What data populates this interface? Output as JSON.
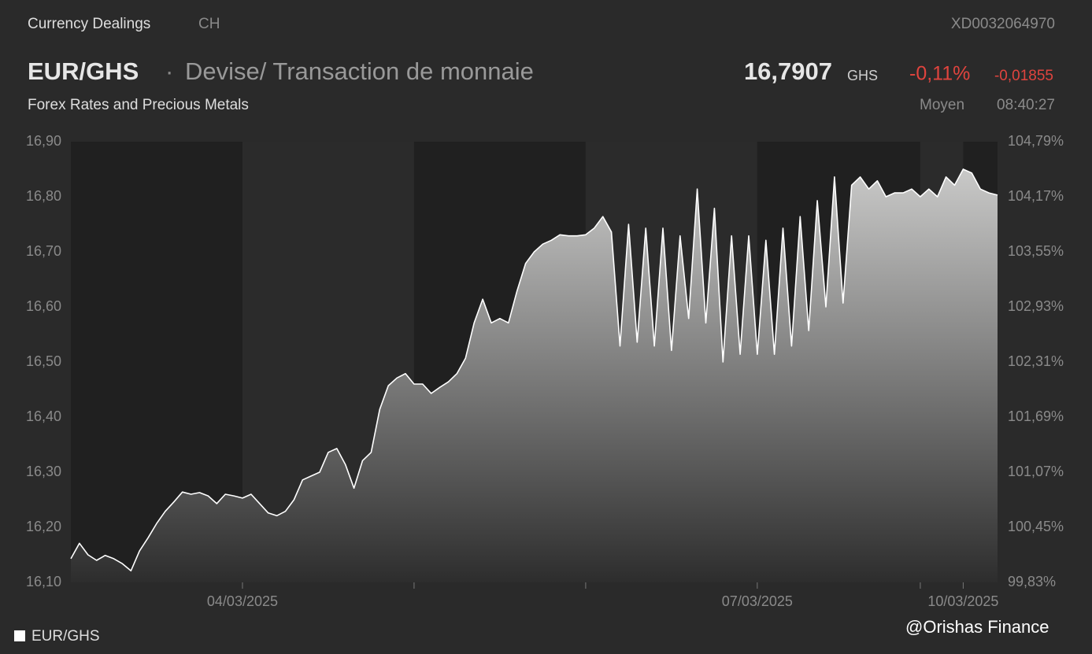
{
  "header": {
    "source": "Currency Dealings",
    "country": "CH",
    "isin": "XD0032064970",
    "symbol": "EUR/GHS",
    "name": "Devise/ Transaction de monnaie",
    "price": "16,7907",
    "currency": "GHS",
    "change_pct": "-0,11%",
    "change_abs": "-0,01855",
    "market": "Forex Rates and Precious Metals",
    "price_type": "Moyen",
    "time": "08:40:27"
  },
  "watermark": "@Orishas Finance",
  "chart_data": {
    "type": "area",
    "series": [
      {
        "name": "EUR/GHS",
        "color": "#ffffff",
        "values": [
          16.143,
          16.171,
          16.15,
          16.14,
          16.149,
          16.143,
          16.134,
          16.121,
          16.157,
          16.181,
          16.207,
          16.229,
          16.246,
          16.264,
          16.26,
          16.263,
          16.257,
          16.243,
          16.26,
          16.257,
          16.253,
          16.26,
          16.243,
          16.226,
          16.221,
          16.229,
          16.25,
          16.286,
          16.293,
          16.3,
          16.336,
          16.343,
          16.314,
          16.271,
          16.321,
          16.336,
          16.414,
          16.457,
          16.471,
          16.479,
          16.46,
          16.46,
          16.443,
          16.454,
          16.464,
          16.479,
          16.507,
          16.571,
          16.614,
          16.571,
          16.579,
          16.571,
          16.629,
          16.679,
          16.7,
          16.714,
          16.721,
          16.731,
          16.729,
          16.729,
          16.731,
          16.743,
          16.764,
          16.736,
          16.529,
          16.75,
          16.536,
          16.743,
          16.529,
          16.743,
          16.521,
          16.729,
          16.579,
          16.814,
          16.571,
          16.779,
          16.5,
          16.729,
          16.514,
          16.729,
          16.514,
          16.721,
          16.514,
          16.743,
          16.529,
          16.764,
          16.557,
          16.793,
          16.6,
          16.836,
          16.607,
          16.821,
          16.836,
          16.814,
          16.829,
          16.8,
          16.807,
          16.807,
          16.814,
          16.8,
          16.814,
          16.8,
          16.836,
          16.821,
          16.85,
          16.843,
          16.814,
          16.807,
          16.803
        ]
      }
    ],
    "xlim": [
      0,
      108
    ],
    "xticks": [
      {
        "value": 20,
        "label": "04/03/2025"
      },
      {
        "value": 40,
        "label": null
      },
      {
        "value": 60,
        "label": null
      },
      {
        "value": 80,
        "label": "07/03/2025"
      },
      {
        "value": 99,
        "label": null
      },
      {
        "value": 104,
        "label": "10/03/2025"
      }
    ],
    "ylim": [
      16.1,
      16.9
    ],
    "yticks": [
      {
        "value": 16.9,
        "label": "16,90"
      },
      {
        "value": 16.8,
        "label": "16,80"
      },
      {
        "value": 16.7,
        "label": "16,70"
      },
      {
        "value": 16.6,
        "label": "16,60"
      },
      {
        "value": 16.5,
        "label": "16,50"
      },
      {
        "value": 16.4,
        "label": "16,40"
      },
      {
        "value": 16.3,
        "label": "16,30"
      },
      {
        "value": 16.2,
        "label": "16,20"
      },
      {
        "value": 16.1,
        "label": "16,10"
      }
    ],
    "y2lim": [
      99.83,
      104.79
    ],
    "y2ticks": [
      {
        "value": 104.79,
        "label": "104,79%"
      },
      {
        "value": 104.17,
        "label": "104,17%"
      },
      {
        "value": 103.55,
        "label": "103,55%"
      },
      {
        "value": 102.93,
        "label": "102,93%"
      },
      {
        "value": 102.31,
        "label": "102,31%"
      },
      {
        "value": 101.69,
        "label": "101,69%"
      },
      {
        "value": 101.07,
        "label": "101,07%"
      },
      {
        "value": 100.45,
        "label": "100,45%"
      },
      {
        "value": 99.83,
        "label": "99,83%"
      }
    ],
    "legend": "bottom-left"
  }
}
